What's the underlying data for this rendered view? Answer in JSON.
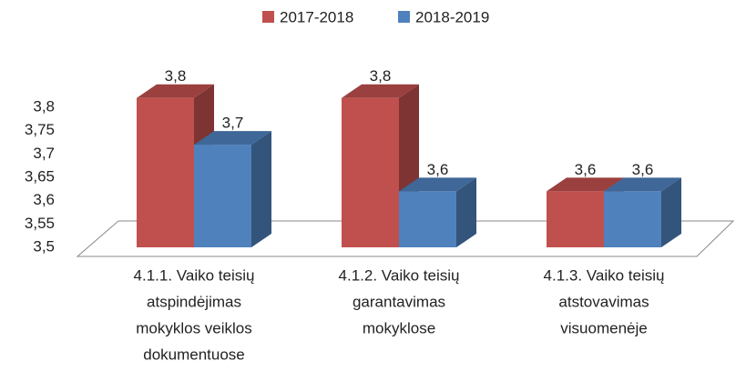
{
  "chart_data": {
    "type": "bar3d",
    "categories": [
      [
        "4.1.1. Vaiko teisių",
        "atspindėjimas",
        "mokyklos veiklos",
        "dokumentuose"
      ],
      [
        "4.1.2. Vaiko teisių",
        "garantavimas",
        "mokyklose"
      ],
      [
        "4.1.3. Vaiko teisių",
        "atstovavimas",
        "visuomenėje"
      ]
    ],
    "series": [
      {
        "name": "2017-2018",
        "color": "#c0504d",
        "values": [
          3.82,
          3.82,
          3.62
        ],
        "value_labels": [
          "3,8",
          "3,8",
          "3,6"
        ]
      },
      {
        "name": "2018-2019",
        "color": "#4f81bd",
        "values": [
          3.72,
          3.62,
          3.62
        ],
        "value_labels": [
          "3,7",
          "3,6",
          "3,6"
        ]
      }
    ],
    "ylim": [
      3.5,
      3.8
    ],
    "yticks": [
      {
        "value": 3.5,
        "label": "3,5"
      },
      {
        "value": 3.55,
        "label": "3,55"
      },
      {
        "value": 3.6,
        "label": "3,6"
      },
      {
        "value": 3.65,
        "label": "3,65"
      },
      {
        "value": 3.7,
        "label": "3,7"
      },
      {
        "value": 3.75,
        "label": "3,75"
      },
      {
        "value": 3.8,
        "label": "3,8"
      }
    ],
    "legend": "top"
  }
}
